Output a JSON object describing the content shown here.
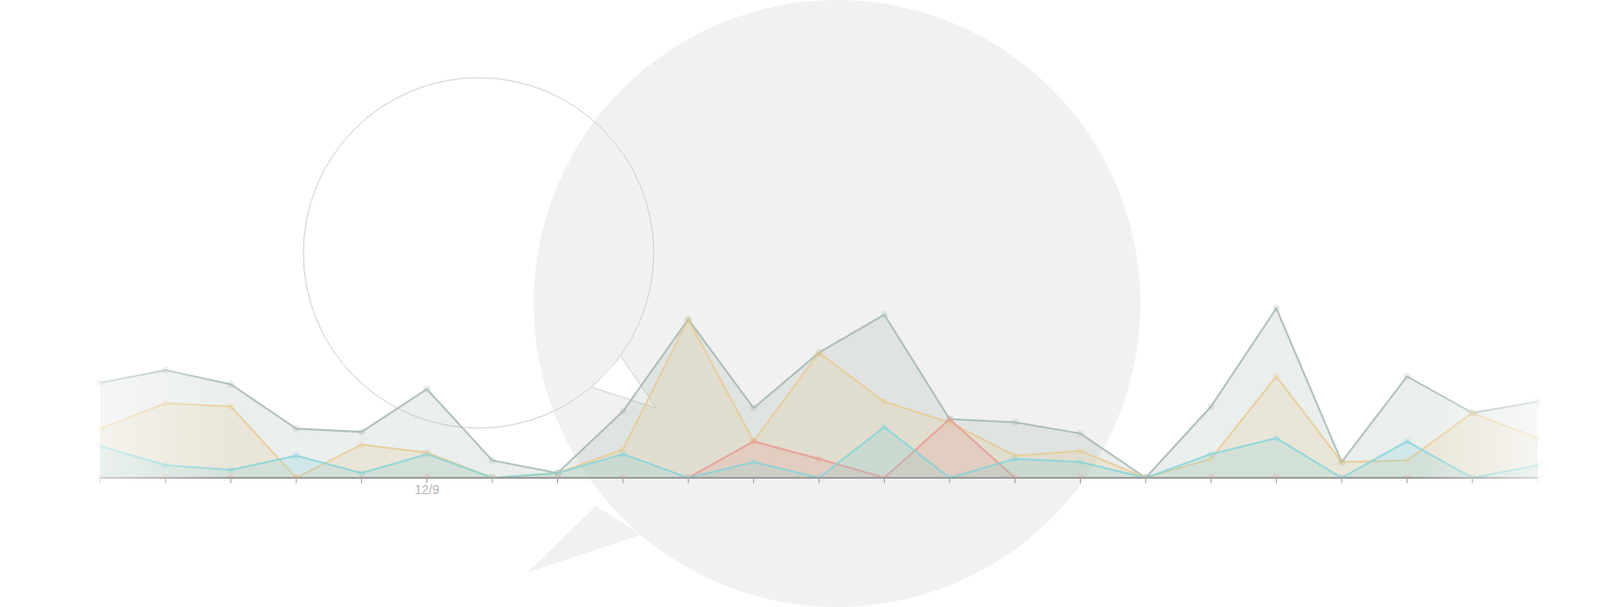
{
  "chart_data": {
    "type": "area",
    "categories": [
      null,
      null,
      null,
      null,
      null,
      "12/9",
      null,
      null,
      null,
      null,
      null,
      null,
      null,
      null,
      null,
      null,
      null,
      null,
      null,
      null,
      null,
      null,
      null
    ],
    "series": [
      {
        "color": "#9eb3ae",
        "values": [
          6.0,
          6.8,
          5.9,
          3.1,
          2.9,
          5.6,
          1.1,
          0.3,
          4.2,
          10.0,
          4.4,
          7.9,
          10.3,
          3.7,
          3.5,
          2.8,
          0,
          4.5,
          10.7,
          1.0,
          6.4,
          4.1,
          4.8
        ]
      },
      {
        "color": "#e9c98c",
        "values": [
          3.1,
          4.7,
          4.5,
          0,
          2.1,
          1.6,
          0,
          0.3,
          1.8,
          10.0,
          2.3,
          7.9,
          4.8,
          3.5,
          1.4,
          1.7,
          0,
          1.2,
          6.4,
          1.0,
          1.1,
          4.1,
          2.5
        ]
      },
      {
        "color": "#e8958f",
        "values": [
          0,
          0,
          0,
          0,
          0,
          0,
          0,
          0,
          0,
          0,
          2.3,
          1.2,
          0,
          3.7,
          0,
          0,
          0,
          0,
          0,
          0,
          0,
          0,
          0
        ]
      },
      {
        "color": "#7fd3d9",
        "values": [
          2.0,
          0.8,
          0.5,
          1.4,
          0.3,
          1.5,
          0,
          0.3,
          1.5,
          0,
          1.0,
          0,
          3.2,
          0,
          1.2,
          1.0,
          0,
          1.5,
          2.5,
          0,
          2.3,
          0,
          0.8
        ]
      }
    ],
    "ylim": [
      0,
      11
    ],
    "yticks": [],
    "tick_labels": "x",
    "marker": "circle"
  }
}
